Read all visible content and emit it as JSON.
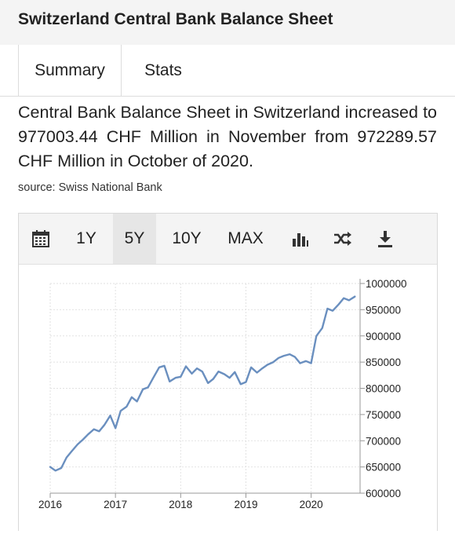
{
  "page": {
    "title": "Switzerland Central Bank Balance Sheet",
    "tabs": [
      {
        "label": "Summary"
      },
      {
        "label": "Stats"
      }
    ],
    "summary": "Central Bank Balance Sheet in Switzerland increased to 977003.44 CHF Million in November from 972289.57 CHF Million in October of 2020.",
    "source": "source: Swiss National Bank"
  },
  "toolbar": {
    "calendar_icon": "calendar-icon",
    "ranges": [
      {
        "label": "1Y",
        "active": false
      },
      {
        "label": "5Y",
        "active": true
      },
      {
        "label": "10Y",
        "active": false
      },
      {
        "label": "MAX",
        "active": false
      }
    ],
    "chart_type_icon": "bar-chart-icon",
    "compare_icon": "shuffle-icon",
    "download_icon": "download-icon"
  },
  "chart_data": {
    "type": "line",
    "title": "",
    "xlabel": "",
    "ylabel": "",
    "x_ticks": [
      "2016",
      "2017",
      "2018",
      "2019",
      "2020"
    ],
    "y_ticks": [
      "600000",
      "650000",
      "700000",
      "750000",
      "800000",
      "850000",
      "900000",
      "950000",
      "1000000"
    ],
    "ylim": [
      600000,
      1000000
    ],
    "grid": true,
    "line_color": "#6a8fbf",
    "series": [
      {
        "name": "",
        "points": [
          [
            2016.0,
            650000
          ],
          [
            2016.08,
            643000
          ],
          [
            2016.17,
            648000
          ],
          [
            2016.25,
            668000
          ],
          [
            2016.33,
            680000
          ],
          [
            2016.42,
            693000
          ],
          [
            2016.5,
            702000
          ],
          [
            2016.58,
            712000
          ],
          [
            2016.67,
            722000
          ],
          [
            2016.75,
            718000
          ],
          [
            2016.83,
            730000
          ],
          [
            2016.92,
            748000
          ],
          [
            2017.0,
            724000
          ],
          [
            2017.08,
            757000
          ],
          [
            2017.17,
            765000
          ],
          [
            2017.25,
            783000
          ],
          [
            2017.33,
            775000
          ],
          [
            2017.42,
            798000
          ],
          [
            2017.5,
            802000
          ],
          [
            2017.58,
            820000
          ],
          [
            2017.67,
            840000
          ],
          [
            2017.75,
            843000
          ],
          [
            2017.83,
            813000
          ],
          [
            2017.92,
            820000
          ],
          [
            2018.0,
            822000
          ],
          [
            2018.08,
            842000
          ],
          [
            2018.17,
            828000
          ],
          [
            2018.25,
            838000
          ],
          [
            2018.33,
            832000
          ],
          [
            2018.42,
            810000
          ],
          [
            2018.5,
            818000
          ],
          [
            2018.58,
            832000
          ],
          [
            2018.67,
            827000
          ],
          [
            2018.75,
            820000
          ],
          [
            2018.83,
            831000
          ],
          [
            2018.92,
            808000
          ],
          [
            2019.0,
            812000
          ],
          [
            2019.08,
            840000
          ],
          [
            2019.17,
            830000
          ],
          [
            2019.25,
            838000
          ],
          [
            2019.33,
            845000
          ],
          [
            2019.42,
            850000
          ],
          [
            2019.5,
            858000
          ],
          [
            2019.58,
            862000
          ],
          [
            2019.67,
            865000
          ],
          [
            2019.75,
            860000
          ],
          [
            2019.83,
            848000
          ],
          [
            2019.92,
            852000
          ],
          [
            2020.0,
            848000
          ],
          [
            2020.08,
            900000
          ],
          [
            2020.17,
            915000
          ],
          [
            2020.25,
            952000
          ],
          [
            2020.33,
            948000
          ],
          [
            2020.42,
            960000
          ],
          [
            2020.5,
            972000
          ],
          [
            2020.58,
            968000
          ],
          [
            2020.67,
            975000
          ]
        ]
      }
    ]
  }
}
